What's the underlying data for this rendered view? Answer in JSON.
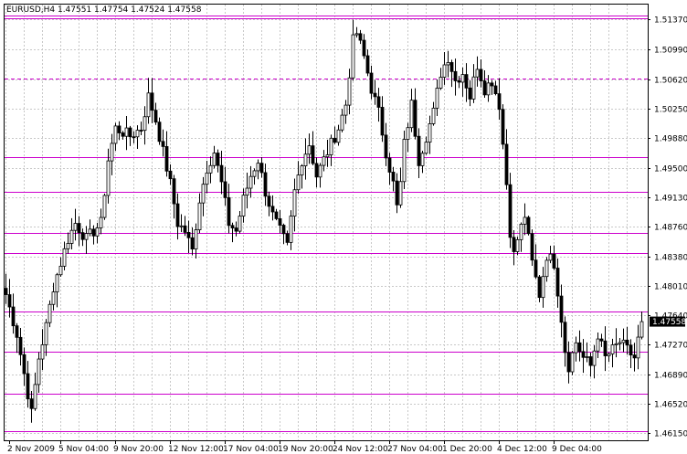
{
  "chart_data": {
    "type": "candlestick",
    "symbol_line": "EURUSD,H4  1.47551 1.47754 1.47524 1.47558",
    "current_price_label": "1.47558",
    "current_price": 1.47558,
    "ylim": [
      1.4606,
      1.5156
    ],
    "y_ticks": [
      "1.51370",
      "1.50990",
      "1.50620",
      "1.50250",
      "1.49880",
      "1.49500",
      "1.49130",
      "1.48760",
      "1.48380",
      "1.48010",
      "1.47640",
      "1.47270",
      "1.46890",
      "1.46520",
      "1.46150"
    ],
    "x_ticks": [
      "2 Nov 2009",
      "5 Nov 04:00",
      "9 Nov 20:00",
      "12 Nov 12:00",
      "17 Nov 04:00",
      "19 Nov 20:00",
      "24 Nov 12:00",
      "27 Nov 04:00",
      "1 Dec 20:00",
      "4 Dec 12:00",
      "9 Dec 04:00"
    ],
    "x_tick_bar_index": [
      1,
      15,
      30,
      45,
      60,
      75,
      90,
      105,
      120,
      135,
      150
    ],
    "grid": true,
    "colors": {
      "background": "#ffffff",
      "grid": "#c8c8c8",
      "candle": "#000000",
      "level_line": "#cc00cc",
      "price_tag_bg": "#000000",
      "price_tag_text": "#ffffff"
    },
    "horizontal_levels": [
      {
        "price": 1.51425,
        "style": "solid"
      },
      {
        "price": 1.5139,
        "style": "solid"
      },
      {
        "price": 1.5063,
        "style": "dashed"
      },
      {
        "price": 1.4963,
        "style": "solid"
      },
      {
        "price": 1.492,
        "style": "solid"
      },
      {
        "price": 1.4868,
        "style": "solid"
      },
      {
        "price": 1.4842,
        "style": "solid"
      },
      {
        "price": 1.4769,
        "style": "solid"
      },
      {
        "price": 1.4718,
        "style": "solid"
      },
      {
        "price": 1.4665,
        "style": "solid"
      },
      {
        "price": 1.4617,
        "style": "solid"
      }
    ],
    "close_anchors": [
      [
        0,
        1.479
      ],
      [
        3,
        1.474
      ],
      [
        5,
        1.469
      ],
      [
        7,
        1.464
      ],
      [
        9,
        1.471
      ],
      [
        11,
        1.475
      ],
      [
        13,
        1.48
      ],
      [
        15,
        1.483
      ],
      [
        17,
        1.486
      ],
      [
        19,
        1.488
      ],
      [
        22,
        1.486
      ],
      [
        24,
        1.487
      ],
      [
        26,
        1.488
      ],
      [
        28,
        1.496
      ],
      [
        30,
        1.5
      ],
      [
        34,
        1.499
      ],
      [
        37,
        1.5
      ],
      [
        39,
        1.504
      ],
      [
        41,
        1.501
      ],
      [
        43,
        1.497
      ],
      [
        45,
        1.493
      ],
      [
        47,
        1.488
      ],
      [
        49,
        1.487
      ],
      [
        51,
        1.4845
      ],
      [
        53,
        1.491
      ],
      [
        55,
        1.495
      ],
      [
        57,
        1.497
      ],
      [
        59,
        1.493
      ],
      [
        61,
        1.488
      ],
      [
        63,
        1.487
      ],
      [
        65,
        1.491
      ],
      [
        67,
        1.494
      ],
      [
        69,
        1.496
      ],
      [
        71,
        1.492
      ],
      [
        73,
        1.489
      ],
      [
        75,
        1.487
      ],
      [
        77,
        1.485
      ],
      [
        79,
        1.492
      ],
      [
        81,
        1.496
      ],
      [
        83,
        1.498
      ],
      [
        85,
        1.494
      ],
      [
        87,
        1.496
      ],
      [
        89,
        1.498
      ],
      [
        91,
        1.5
      ],
      [
        93,
        1.503
      ],
      [
        94,
        1.507
      ],
      [
        95,
        1.511
      ],
      [
        96,
        1.512
      ],
      [
        98,
        1.509
      ],
      [
        100,
        1.505
      ],
      [
        102,
        1.502
      ],
      [
        104,
        1.497
      ],
      [
        106,
        1.493
      ],
      [
        107,
        1.49
      ],
      [
        108,
        1.493
      ],
      [
        109,
        1.498
      ],
      [
        111,
        1.503
      ],
      [
        113,
        1.496
      ],
      [
        115,
        1.499
      ],
      [
        117,
        1.502
      ],
      [
        119,
        1.507
      ],
      [
        121,
        1.509
      ],
      [
        123,
        1.506
      ],
      [
        125,
        1.507
      ],
      [
        127,
        1.504
      ],
      [
        129,
        1.508
      ],
      [
        131,
        1.505
      ],
      [
        133,
        1.506
      ],
      [
        135,
        1.503
      ],
      [
        137,
        1.493
      ],
      [
        138,
        1.487
      ],
      [
        139,
        1.484
      ],
      [
        140,
        1.486
      ],
      [
        142,
        1.489
      ],
      [
        144,
        1.483
      ],
      [
        146,
        1.479
      ],
      [
        148,
        1.484
      ],
      [
        150,
        1.483
      ],
      [
        152,
        1.476
      ],
      [
        153,
        1.472
      ],
      [
        154,
        1.47
      ],
      [
        156,
        1.473
      ],
      [
        158,
        1.471
      ],
      [
        160,
        1.47
      ],
      [
        162,
        1.474
      ],
      [
        164,
        1.471
      ],
      [
        166,
        1.472
      ],
      [
        168,
        1.473
      ],
      [
        170,
        1.472
      ],
      [
        172,
        1.471
      ],
      [
        174,
        1.4756
      ]
    ],
    "bar_count": 175
  }
}
